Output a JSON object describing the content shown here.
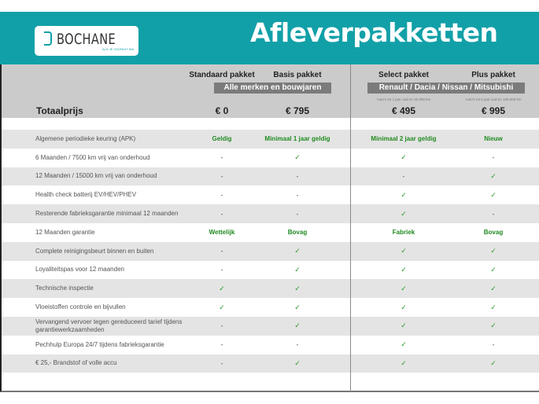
{
  "header": {
    "logo_text": "BOCHANE",
    "logo_tagline": "ALS JE VOORUIT WIL",
    "title": "Afleverpakketten",
    "accent": "#12a0a8"
  },
  "packages": [
    {
      "name": "Standaard pakket",
      "price": "€ 0"
    },
    {
      "name": "Basis pakket",
      "price": "€ 795"
    },
    {
      "name": "Select pakket",
      "price": "€ 495",
      "note": "Auto's tot 1 jaar oud en 20.000 km"
    },
    {
      "name": "Plus pakket",
      "price": "€ 995",
      "note": "Auto's tot 5 jaar oud en 100.000 km"
    }
  ],
  "groups": {
    "all": "Alle merken en bouwjaren",
    "brands": "Renault / Dacia / Nissan / Mitsubishi"
  },
  "total_label": "Totaalprijs",
  "rows": [
    {
      "label": "Algemene periodieke keuring (APK)",
      "values": [
        "Geldig",
        "Minimaal 1 jaar geldig",
        "Minimaal 2 jaar geldig",
        "Nieuw"
      ]
    },
    {
      "label": "6 Maanden / 7500 km vrij van onderhoud",
      "values": [
        "-",
        "✓",
        "✓",
        "-"
      ]
    },
    {
      "label": "12 Maanden / 15000 km vrij van onderhoud",
      "values": [
        "-",
        "-",
        "-",
        "✓"
      ]
    },
    {
      "label": "Health check batterij EV/HEV/PHEV",
      "values": [
        "-",
        "-",
        "✓",
        "✓"
      ]
    },
    {
      "label": "Resterende fabrieksgarantie minimaal 12 maanden",
      "values": [
        "-",
        "-",
        "✓",
        "-"
      ]
    },
    {
      "label": "12 Maanden  garantie",
      "values": [
        "Wettelijk",
        "Bovag",
        "Fabriek",
        "Bovag"
      ]
    },
    {
      "label": "Complete reinigingsbeurt binnen en buiten",
      "values": [
        "-",
        "✓",
        "✓",
        "✓"
      ]
    },
    {
      "label": "Loyaliteitspas voor 12 maanden",
      "values": [
        "-",
        "✓",
        "✓",
        "✓"
      ]
    },
    {
      "label": "Technische inspectie",
      "values": [
        "✓",
        "✓",
        "✓",
        "✓"
      ]
    },
    {
      "label": "Vloeistoffen controle en bijvullen",
      "values": [
        "✓",
        "✓",
        "✓",
        "✓"
      ]
    },
    {
      "label": "Vervangend vervoer tegen gereduceerd tarief tijdens garantiewerkzaamheden",
      "values": [
        "-",
        "✓",
        "✓",
        "✓"
      ]
    },
    {
      "label": "Pechhulp Europa 24/7 tijdens fabrieksgarantie",
      "values": [
        "-",
        "-",
        "✓",
        "-"
      ]
    },
    {
      "label": "€ 25,- Brandstof of  volle accu",
      "values": [
        "-",
        "✓",
        "✓",
        "✓"
      ]
    }
  ]
}
